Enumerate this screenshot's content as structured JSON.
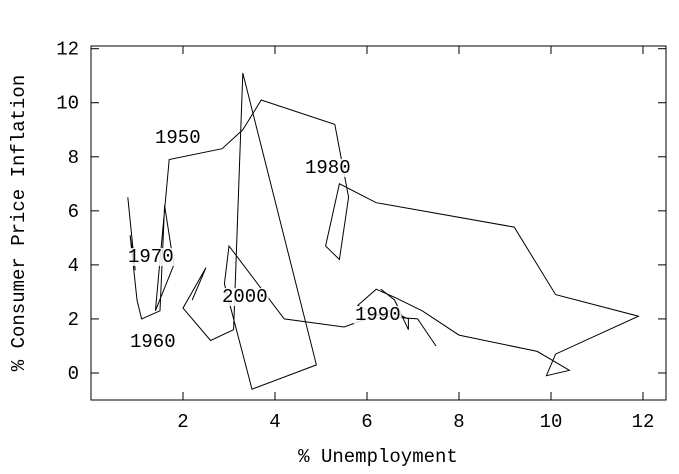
{
  "chart_data": {
    "type": "line",
    "xlabel": "% Unemployment",
    "ylabel": "% Consumer Price Inflation",
    "annotations": [
      "1950",
      "1980",
      "1970",
      "2000",
      "1990",
      "1960"
    ],
    "x": [
      0.8,
      0.96,
      0.85,
      1.0,
      1.1,
      1.5,
      1.6,
      1.8,
      1.4,
      1.7,
      2.85,
      3.3,
      3.7,
      5.3,
      5.6,
      5.4,
      5.1,
      5.4,
      6.2,
      9.2,
      10.1,
      11.9,
      10.1,
      9.9,
      10.4,
      9.7,
      8.0,
      7.2,
      6.6,
      6.2,
      5.8,
      6.3,
      7.1,
      7.5,
      null,
      2.2,
      2.5,
      2.0,
      2.6,
      3.1,
      3.3,
      4.9,
      3.5,
      2.9,
      3.0,
      4.2,
      5.5,
      6.5,
      6.9,
      6.9,
      6.6,
      6.3
    ],
    "series": [
      {
        "color": "#000000",
        "values": [
          6.5,
          3.8,
          5.1,
          2.7,
          2.0,
          2.3,
          6.2,
          4.0,
          2.3,
          7.9,
          8.3,
          9.0,
          10.1,
          9.2,
          6.5,
          4.2,
          4.7,
          7.0,
          6.3,
          5.4,
          2.9,
          2.1,
          0.7,
          -0.1,
          0.1,
          0.8,
          1.4,
          2.3,
          2.8,
          3.1,
          2.5,
          2.1,
          2.0,
          1.0,
          null,
          2.7,
          3.9,
          2.4,
          1.2,
          1.6,
          11.1,
          0.3,
          -0.6,
          3.3,
          4.7,
          2.0,
          1.7,
          2.3,
          2.0,
          1.6,
          2.7,
          3.1
        ]
      }
    ],
    "xlim": [
      0,
      12.5
    ],
    "ylim": [
      -1,
      12.1
    ],
    "xticks": [
      2,
      4,
      6,
      8,
      10,
      12
    ],
    "yticks": [
      0,
      2,
      4,
      6,
      8,
      10,
      12
    ]
  }
}
